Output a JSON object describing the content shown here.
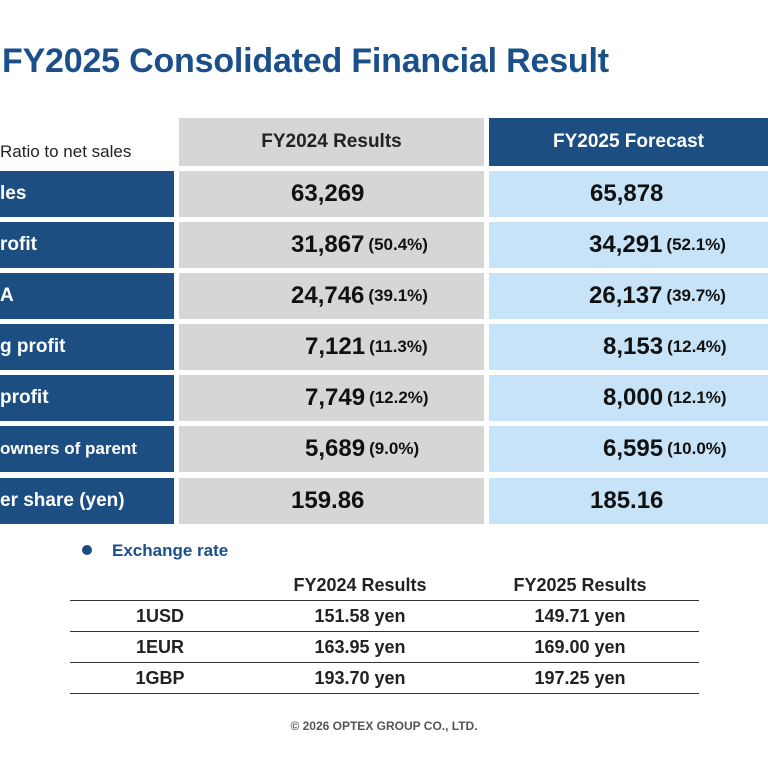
{
  "title": "FY2025 Consolidated Financial Result",
  "ratio_note": "Ratio to net sales",
  "columns": {
    "results_2024": "FY2024 Results",
    "forecast_2025": "FY2025 Forecast"
  },
  "rows": [
    {
      "label": "les",
      "v2024": "63,269",
      "p2024": "",
      "v2025": "65,878",
      "p2025": ""
    },
    {
      "label": "rofit",
      "v2024": "31,867",
      "p2024": "(50.4%)",
      "v2025": "34,291",
      "p2025": "(52.1%)"
    },
    {
      "label": "A",
      "v2024": "24,746",
      "p2024": "(39.1%)",
      "v2025": "26,137",
      "p2025": "(39.7%)"
    },
    {
      "label": "g profit",
      "v2024": "7,121",
      "p2024": "(11.3%)",
      "v2025": "8,153",
      "p2025": "(12.4%)"
    },
    {
      "label": "profit",
      "v2024": "7,749",
      "p2024": "(12.2%)",
      "v2025": "8,000",
      "p2025": "(12.1%)"
    },
    {
      "label": "owners of parent",
      "v2024": "5,689",
      "p2024": "(9.0%)",
      "v2025": "6,595",
      "p2025": "(10.0%)"
    },
    {
      "label": "er share (yen)",
      "v2024": "159.86",
      "p2024": "",
      "v2025": "185.16",
      "p2025": ""
    }
  ],
  "exchange": {
    "title": "Exchange rate",
    "headers": [
      "FY2024 Results",
      "FY2025 Results"
    ],
    "rows": [
      {
        "currency": "1USD",
        "r2024": "151.58 yen",
        "r2025": "149.71 yen"
      },
      {
        "currency": "1EUR",
        "r2024": "163.95 yen",
        "r2025": "169.00 yen"
      },
      {
        "currency": "1GBP",
        "r2024": "193.70 yen",
        "r2025": "197.25 yen"
      }
    ]
  },
  "footer": "© 2026 OPTEX GROUP CO., LTD."
}
